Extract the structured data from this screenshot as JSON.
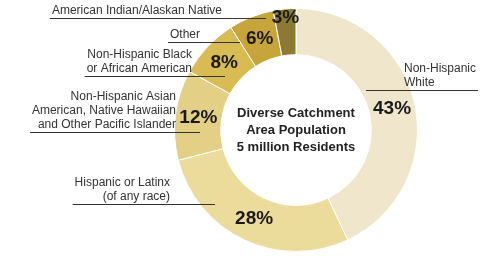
{
  "chart_data": {
    "type": "doughnut",
    "title": "Diverse Catchment Area Population",
    "subtitle": "5 million Residents",
    "categories": [
      "Non-Hispanic White",
      "Hispanic or Latinx (of any race)",
      "Non-Hispanic Asian American, Native Hawaiian and Other Pacific Islander",
      "Non-Hispanic Black or African American",
      "Other",
      "American Indian/Alaskan Native"
    ],
    "values": [
      43,
      28,
      12,
      8,
      6,
      3
    ],
    "value_labels": [
      "43%",
      "28%",
      "12%",
      "8%",
      "6%",
      "3%"
    ],
    "colors": [
      "#efe6cc",
      "#ecdc9b",
      "#e4cf86",
      "#d8bb52",
      "#c8a53a",
      "#8b7a33"
    ],
    "data_labels": true
  }
}
